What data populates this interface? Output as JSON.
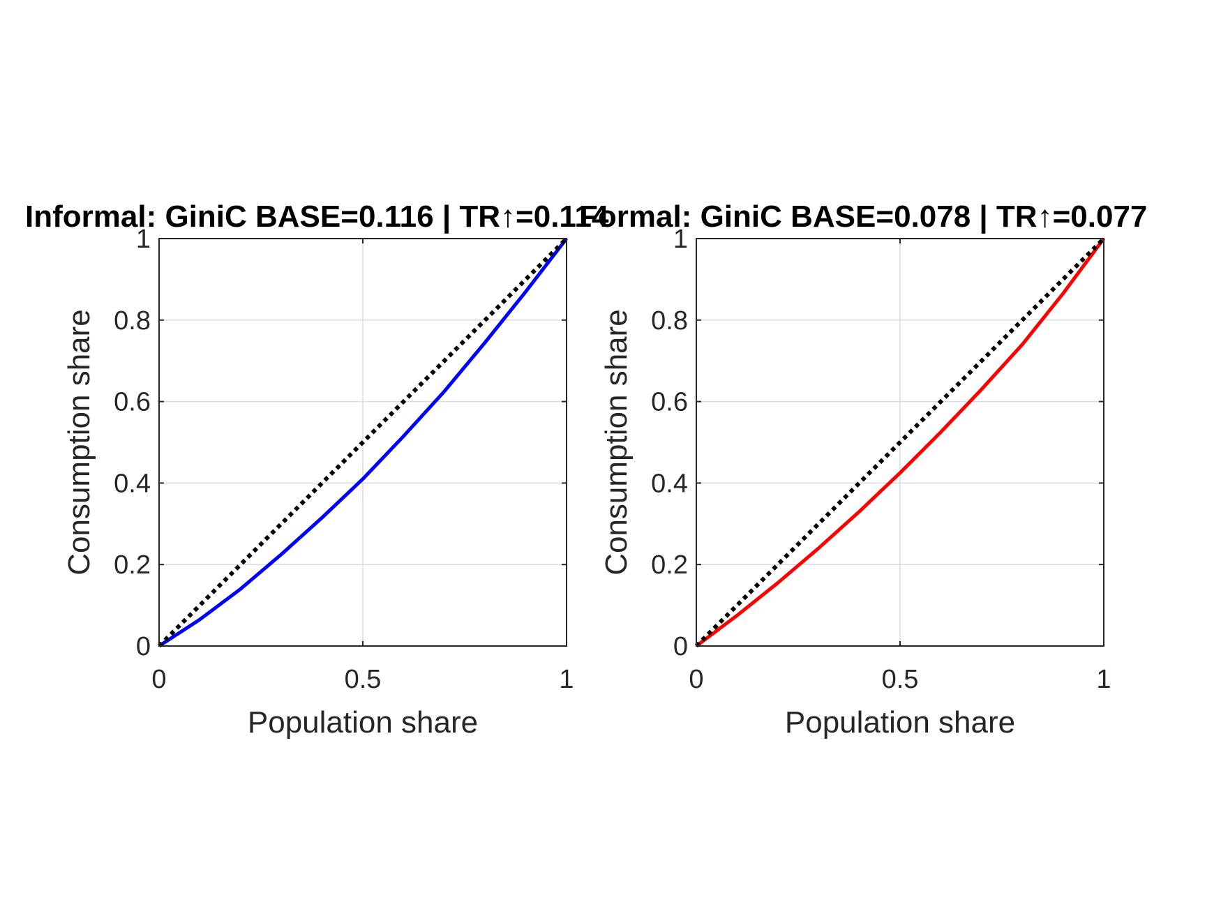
{
  "chart_data": [
    {
      "type": "line",
      "title": "Informal: GiniC BASE=0.116 | TR↑=0.114",
      "xlabel": "Population share",
      "ylabel": "Consumption share",
      "xlim": [
        0,
        1
      ],
      "ylim": [
        0,
        1
      ],
      "xticks": [
        "0",
        "0.5",
        "1"
      ],
      "yticks": [
        "0",
        "0.2",
        "0.4",
        "0.6",
        "0.8",
        "1"
      ],
      "grid": true,
      "series": [
        {
          "style": "solid",
          "color": "#0000ff",
          "x": [
            0,
            0.1,
            0.2,
            0.3,
            0.4,
            0.5,
            0.6,
            0.7,
            0.8,
            0.9,
            1.0
          ],
          "y": [
            0,
            0.065,
            0.14,
            0.225,
            0.315,
            0.41,
            0.515,
            0.625,
            0.745,
            0.87,
            1.0
          ]
        },
        {
          "style": "dotted",
          "color": "#000000",
          "x": [
            0,
            1
          ],
          "y": [
            0,
            1
          ]
        }
      ]
    },
    {
      "type": "line",
      "title": "Formal: GiniC BASE=0.078 | TR↑=0.077",
      "xlabel": "Population share",
      "ylabel": "Consumption share",
      "xlim": [
        0,
        1
      ],
      "ylim": [
        0,
        1
      ],
      "xticks": [
        "0",
        "0.5",
        "1"
      ],
      "yticks": [
        "0",
        "0.2",
        "0.4",
        "0.6",
        "0.8",
        "1"
      ],
      "grid": true,
      "series": [
        {
          "style": "solid",
          "color": "#ff0000",
          "x": [
            0,
            0.1,
            0.2,
            0.3,
            0.4,
            0.5,
            0.6,
            0.7,
            0.8,
            0.9,
            1.0
          ],
          "y": [
            0,
            0.075,
            0.155,
            0.24,
            0.33,
            0.425,
            0.525,
            0.63,
            0.74,
            0.865,
            1.0
          ]
        },
        {
          "style": "dotted",
          "color": "#000000",
          "x": [
            0,
            1
          ],
          "y": [
            0,
            1
          ]
        }
      ]
    }
  ]
}
